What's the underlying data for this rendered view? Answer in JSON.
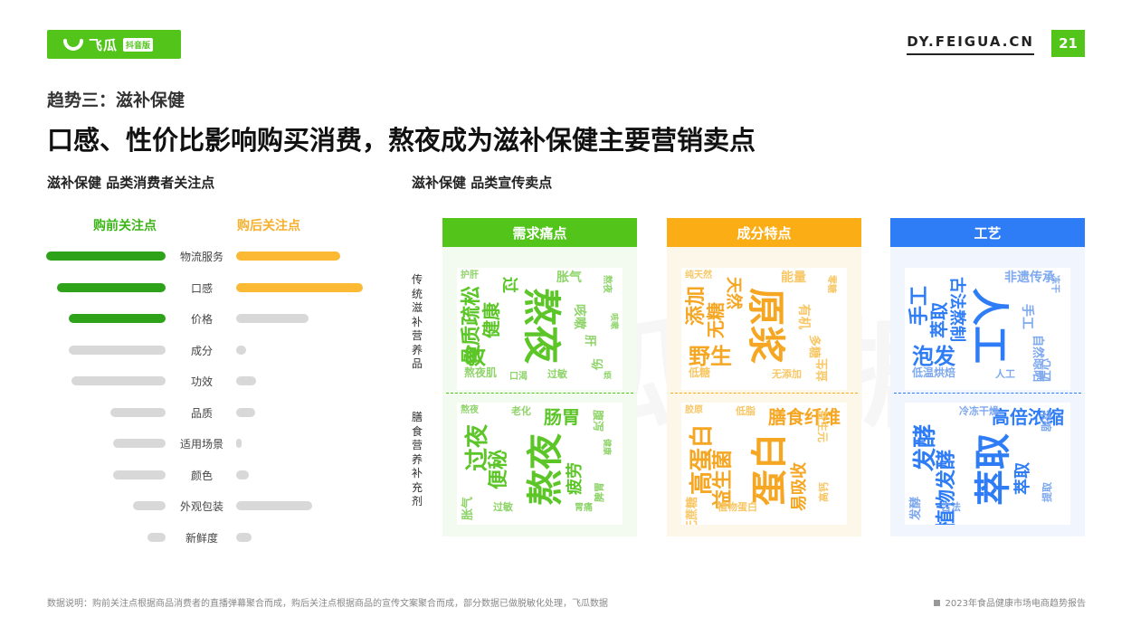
{
  "header": {
    "logo_name": "飞瓜",
    "logo_tag": "抖音版",
    "site": "DY.FEIGUA.CN",
    "page_number": "21"
  },
  "kicker": "趋势三：滋补保健",
  "title": "口感、性价比影响购买消费，熬夜成为滋补保健主要营销卖点",
  "left_subtitle": "滋补保健 品类消费者关注点",
  "right_subtitle": "滋补保健 品类宣传卖点",
  "watermark": "飞瓜数据",
  "chart_data": {
    "type": "bar",
    "orientation": "horizontal-butterfly",
    "categories": [
      "物流服务",
      "口感",
      "价格",
      "成分",
      "功效",
      "品质",
      "适用场景",
      "颜色",
      "外观包装",
      "新鲜度"
    ],
    "series": [
      {
        "name": "购前关注点",
        "values": [
          100,
          91,
          81,
          81,
          79,
          46,
          44,
          44,
          27,
          15
        ],
        "color": "#2ea31a",
        "highlight_count": 3
      },
      {
        "name": "购后关注点",
        "values": [
          82,
          100,
          57,
          8,
          16,
          15,
          3,
          10,
          60,
          12
        ],
        "color": "#fbb934",
        "highlight_count": 2
      }
    ],
    "muted_color": "#d8d8d8"
  },
  "panels": [
    {
      "title": "需求痛点",
      "head_color": "#52c41a",
      "bg": "#f3faef",
      "word_color_main": "#5cc628",
      "word_color_light": "#8fd46a",
      "words_top": [
        "熬夜",
        "骨质疏松",
        "健康",
        "敏",
        "过",
        "胀气",
        "咳嗽",
        "肝",
        "伤",
        "熬夜肌",
        "过敏",
        "熬夜",
        "护肝",
        "口渴",
        "咳嗽",
        "烦"
      ],
      "words_bottom": [
        "熬夜",
        "过夜",
        "便秘",
        "肠胃",
        "疲劳",
        "胀气",
        "老化",
        "腹泻",
        "脾胃",
        "过敏",
        "熬夜",
        "胃痛",
        "健康"
      ]
    },
    {
      "title": "成分特点",
      "head_color": "#faad14",
      "bg": "#fdf7ea",
      "word_color_main": "#f5a623",
      "word_color_light": "#f8c766",
      "words_top": [
        "原浆",
        "添加",
        "无糖",
        "野生",
        "天然",
        "能量",
        "有机",
        "多糖",
        "益生",
        "低糖",
        "无添加",
        "零糖",
        "纯天然"
      ],
      "words_bottom": [
        "蛋白",
        "高蛋白",
        "益生菌",
        "膳食纤维",
        "易吸收",
        "无蔗糖",
        "低脂",
        "益生元",
        "高钙",
        "植物蛋白",
        "胶原"
      ]
    },
    {
      "title": "工艺",
      "head_color": "#2f7df6",
      "bg": "#f1f6fe",
      "word_color_main": "#2f7df6",
      "word_color_light": "#7fa9ee",
      "words_top": [
        "人工",
        "手工",
        "萃取",
        "泡发",
        "古法熬制",
        "非遗传承",
        "手工",
        "自然晾晒",
        "匠心",
        "低温烘焙",
        "人工",
        "冻干"
      ],
      "words_bottom": [
        "萃取",
        "发酵",
        "植物发酵",
        "高倍浓缩",
        "萃取",
        "发酵",
        "冷冻干燥",
        "浓缩",
        "提取",
        "古法"
      ]
    }
  ],
  "row_group_labels": [
    "传统滋补营养品",
    "膳食营养补充剂"
  ],
  "footer": {
    "note": "数据说明：购前关注点根据商品消费者的直播弹幕聚合而成，购后关注点根据商品的宣传文案聚合而成，部分数据已做脱敏化处理，飞瓜数据",
    "report": "2023年食品健康市场电商趋势报告"
  }
}
